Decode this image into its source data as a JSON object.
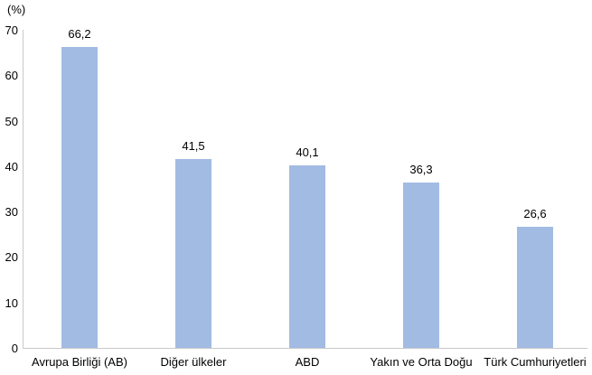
{
  "chart_data": {
    "type": "bar",
    "title": "",
    "unit_label": "(%)",
    "categories": [
      "Avrupa Birliği (AB)",
      "Diğer ülkeler",
      "ABD",
      "Yakın ve Orta Doğu",
      "Türk Cumhuriyetleri"
    ],
    "values": [
      66.2,
      41.5,
      40.1,
      36.3,
      26.6
    ],
    "value_labels": [
      "66,2",
      "41,5",
      "40,1",
      "36,3",
      "26,6"
    ],
    "ylim": [
      0,
      70
    ],
    "yticks": [
      0,
      10,
      20,
      30,
      40,
      50,
      60,
      70
    ],
    "grid": false,
    "legend": "none",
    "bar_color": "#a2bbe2",
    "axis_color": "#c9c9c9",
    "text_color": "#000000"
  }
}
